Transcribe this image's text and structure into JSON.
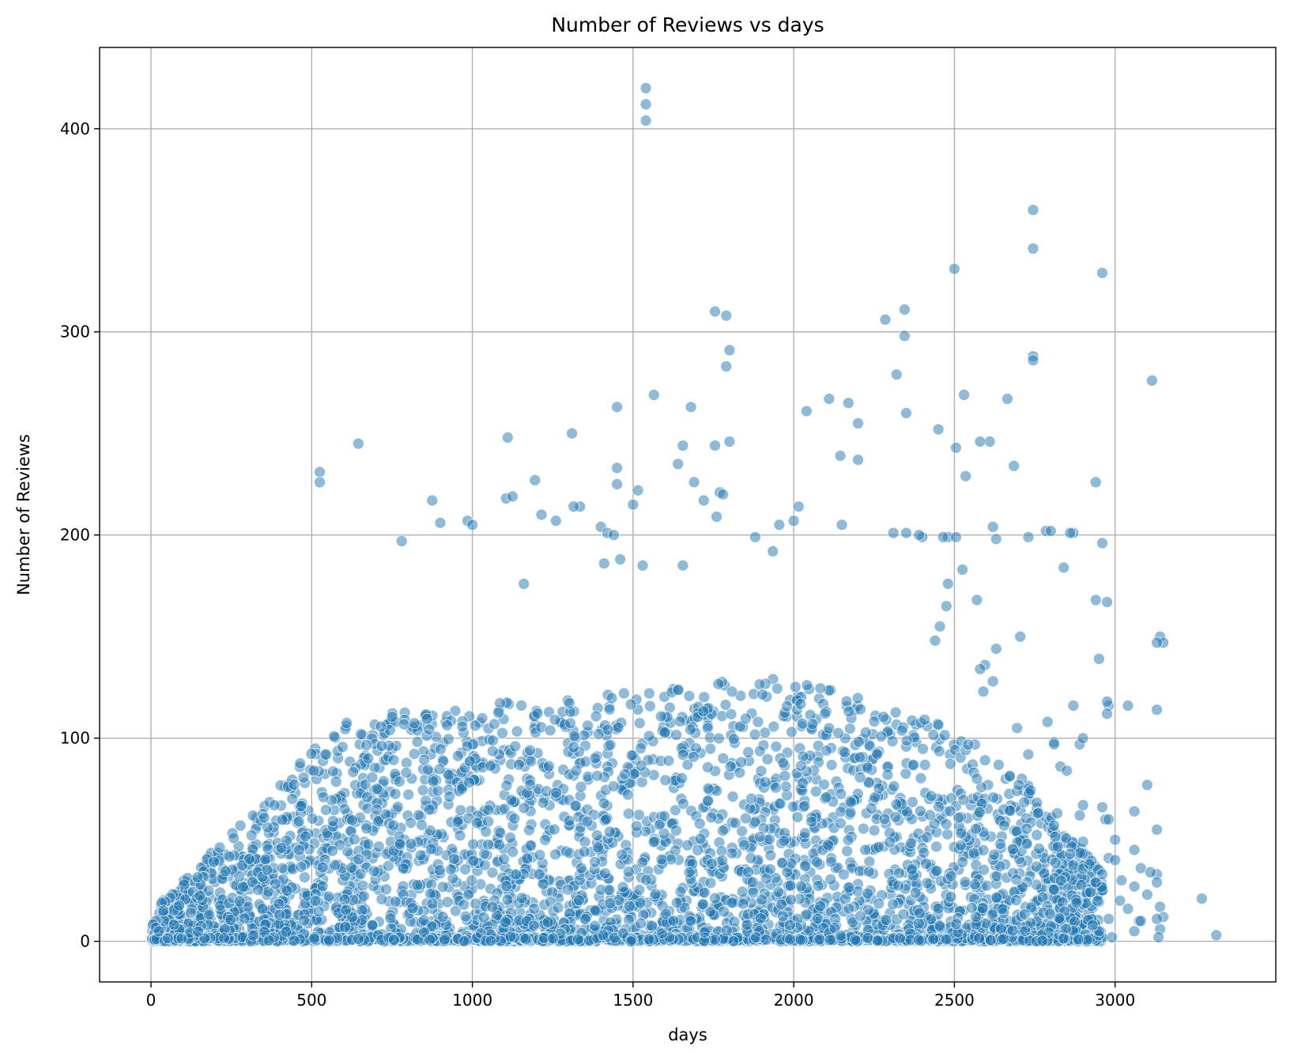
{
  "chart_data": {
    "type": "scatter",
    "title": "Number of Reviews vs days",
    "xlabel": "days",
    "ylabel": "Number of Reviews",
    "xlim": [
      -160,
      3500
    ],
    "ylim": [
      -20,
      440
    ],
    "x_ticks": [
      0,
      500,
      1000,
      1500,
      2000,
      2500,
      3000
    ],
    "y_ticks": [
      0,
      100,
      200,
      300,
      400
    ],
    "x_tick_labels": [
      "0",
      "500",
      "1000",
      "1500",
      "2000",
      "2500",
      "3000"
    ],
    "y_tick_labels": [
      "0",
      "100",
      "200",
      "300",
      "400"
    ],
    "grid": true,
    "legend": "none",
    "series": [
      {
        "color": "#1f77b4",
        "opacity": 0.5,
        "x": [
          1540,
          1540,
          1540,
          2745,
          2745,
          2500,
          2960,
          1755,
          1790,
          2345,
          1790,
          2285,
          2345,
          1800,
          2745,
          2745,
          2320,
          3115,
          1565,
          2530,
          2110,
          2170,
          2665,
          1450,
          1680,
          2350,
          2040,
          2200,
          2450,
          1110,
          1310,
          645,
          2610,
          2580,
          1755,
          1800,
          2505,
          2145,
          2200,
          1655,
          2685,
          2940,
          1640,
          525,
          525,
          2535,
          1195,
          1690,
          1450,
          1450,
          1515,
          1500,
          875,
          1105,
          1125,
          1720,
          1770,
          1780,
          1335,
          1315,
          2015,
          1760,
          2000,
          1260,
          1530,
          2480,
          2400,
          2505,
          2465,
          2620,
          2350,
          2870,
          2785,
          2310,
          2390,
          2730,
          1400,
          1420,
          1440,
          985,
          1000,
          900,
          1655,
          2630,
          780,
          1880,
          1955,
          2150,
          1215,
          3140,
          1935,
          2480,
          2525,
          2840,
          2800,
          2940,
          2860,
          2960,
          2975,
          2950,
          2980,
          3150,
          2705,
          2570,
          1160,
          2590,
          2595,
          2620,
          2630,
          1460,
          1410,
          2810,
          2695,
          2580,
          2455,
          2475,
          2440,
          2260,
          2890,
          2810,
          2975,
          2975,
          2730,
          3130,
          2830,
          2790,
          2695,
          2890,
          2710,
          2570,
          3040,
          2870,
          2900,
          2970,
          2980,
          3060,
          3000,
          3130,
          2760,
          2810,
          2820,
          2850,
          2900,
          2700,
          2655,
          3015,
          3130,
          3060,
          3020,
          3075,
          3080,
          3130,
          3100,
          3150,
          3140,
          3060,
          3270,
          3315,
          3140,
          3100,
          3080,
          2960,
          2940,
          2980,
          2900,
          2880,
          2860,
          2920,
          2950,
          2990,
          3110,
          3130,
          2980,
          2950,
          2930,
          3000,
          3130,
          3135,
          3040,
          3060,
          2960
        ],
        "y": [
          420,
          412,
          404,
          360,
          341,
          331,
          329,
          310,
          308,
          311,
          283,
          306,
          298,
          291,
          288,
          286,
          279,
          276,
          269,
          269,
          267,
          265,
          267,
          263,
          263,
          260,
          261,
          255,
          252,
          248,
          250,
          245,
          246,
          246,
          244,
          246,
          243,
          239,
          237,
          244,
          234,
          226,
          235,
          231,
          226,
          229,
          227,
          226,
          233,
          225,
          222,
          215,
          217,
          218,
          219,
          217,
          221,
          220,
          214,
          214,
          214,
          209,
          207,
          207,
          185,
          199,
          199,
          199,
          199,
          204,
          201,
          201,
          202,
          201,
          200,
          199,
          204,
          201,
          200,
          207,
          205,
          206,
          185,
          198,
          197,
          199,
          205,
          205,
          210,
          150,
          192,
          176,
          183,
          184,
          202,
          168,
          201,
          196,
          167,
          139,
          116,
          147,
          150,
          168,
          176,
          123,
          136,
          128,
          144,
          188,
          186,
          98,
          105,
          134,
          155,
          165,
          148,
          92,
          97,
          97,
          118,
          112,
          92,
          114,
          86,
          108,
          74,
          62,
          80,
          80,
          116,
          116,
          67,
          60,
          60,
          64,
          50,
          55,
          63,
          57,
          63,
          84,
          100,
          77,
          57,
          20,
          33,
          27,
          30,
          10,
          10,
          147,
          77,
          12,
          6,
          5,
          21,
          3,
          17,
          23,
          36,
          33,
          29,
          41,
          49,
          19,
          43,
          38,
          3,
          2,
          34,
          29,
          11,
          5,
          8,
          40,
          11,
          2,
          16,
          45,
          66
        ]
      }
    ]
  }
}
